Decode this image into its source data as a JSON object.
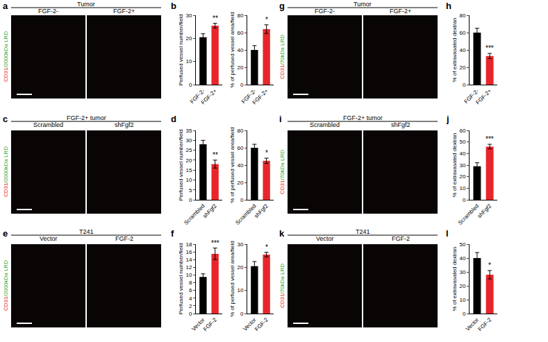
{
  "image_panels": [
    {
      "panel": "a",
      "header": "Tumor",
      "labels": [
        "FGF-2-",
        "FGF-2+"
      ],
      "stain": "CD31/2000kDa LRD"
    },
    {
      "panel": "c",
      "header": "FGF-2+ tumor",
      "labels": [
        "Scrambled",
        "shFgf2"
      ],
      "stain": "CD31/2000kDa LRD"
    },
    {
      "panel": "e",
      "header": "T241",
      "labels": [
        "Vector",
        "FGF-2"
      ],
      "stain": "CD31/2000kDa LRD"
    },
    {
      "panel": "g",
      "header": "Tumor",
      "labels": [
        "FGF-2-",
        "FGF-2+"
      ],
      "stain": "CD31/70kDa LRD"
    },
    {
      "panel": "i",
      "header": "FGF-2+ tumor",
      "labels": [
        "Scrambled",
        "shFgf2"
      ],
      "stain": "CD31/70kDa LRD"
    },
    {
      "panel": "k",
      "header": "T241",
      "labels": [
        "Vector",
        "FGF-2"
      ],
      "stain": "CD31/70kDa LRD"
    }
  ],
  "chart_data": [
    {
      "panel": "b",
      "type": "bar",
      "ylabel": "Perfused vessel number/field",
      "categories": [
        "FGF-2-",
        "FGF-2+"
      ],
      "values": [
        20.5,
        25.5
      ],
      "errors": [
        1.5,
        1
      ],
      "colors": [
        "#000000",
        "#e8262a"
      ],
      "ylim": [
        0,
        30
      ],
      "yticks": [
        0,
        10,
        20,
        30
      ],
      "annotations": [
        {
          "category": "FGF-2+",
          "text": "**"
        }
      ]
    },
    {
      "type": "bar",
      "ylabel": "% of perfused vessel area/field",
      "categories": [
        "FGF-2-",
        "FGF-2+"
      ],
      "values": [
        40,
        64
      ],
      "errors": [
        5,
        5
      ],
      "colors": [
        "#000000",
        "#e8262a"
      ],
      "ylim": [
        0,
        80
      ],
      "yticks": [
        0,
        20,
        40,
        60,
        80
      ],
      "annotations": [
        {
          "category": "FGF-2+",
          "text": "*"
        }
      ]
    },
    {
      "panel": "d",
      "type": "bar",
      "ylabel": "Perfused vessel number/field",
      "categories": [
        "Scrambled",
        "shFgf2"
      ],
      "values": [
        28,
        18
      ],
      "errors": [
        2,
        2
      ],
      "colors": [
        "#000000",
        "#e8262a"
      ],
      "ylim": [
        0,
        35
      ],
      "yticks": [
        0,
        5,
        10,
        15,
        20,
        25,
        30,
        35
      ],
      "annotations": [
        {
          "category": "shFgf2",
          "text": "**"
        }
      ]
    },
    {
      "type": "bar",
      "ylabel": "% of perfused vessel area/field",
      "categories": [
        "Scrambled",
        "shFgf2"
      ],
      "values": [
        60,
        45
      ],
      "errors": [
        4,
        3
      ],
      "colors": [
        "#000000",
        "#e8262a"
      ],
      "ylim": [
        0,
        80
      ],
      "yticks": [
        0,
        20,
        40,
        60,
        80
      ],
      "annotations": [
        {
          "category": "shFgf2",
          "text": "*"
        }
      ]
    },
    {
      "panel": "f",
      "type": "bar",
      "ylabel": "Perfused vessel number/field",
      "categories": [
        "Vector",
        "FGF-2"
      ],
      "values": [
        9.5,
        15.5
      ],
      "errors": [
        0.8,
        1.5
      ],
      "colors": [
        "#000000",
        "#e8262a"
      ],
      "ylim": [
        0,
        18
      ],
      "yticks": [
        0,
        2,
        4,
        6,
        8,
        10,
        12,
        14,
        16,
        18
      ],
      "annotations": [
        {
          "category": "FGF-2",
          "text": "***"
        }
      ]
    },
    {
      "type": "bar",
      "ylabel": "% of perfused vessel area/field",
      "categories": [
        "Vector",
        "FGF-2"
      ],
      "values": [
        20.5,
        25.5
      ],
      "errors": [
        2,
        1
      ],
      "colors": [
        "#000000",
        "#e8262a"
      ],
      "ylim": [
        0,
        30
      ],
      "yticks": [
        0,
        10,
        20,
        30
      ],
      "annotations": [
        {
          "category": "FGF-2",
          "text": "*"
        }
      ]
    },
    {
      "panel": "h",
      "type": "bar",
      "ylabel": "% of extravasated dextran",
      "categories": [
        "FGF-2-",
        "FGF-2+"
      ],
      "values": [
        60,
        33
      ],
      "errors": [
        5,
        3
      ],
      "colors": [
        "#000000",
        "#e8262a"
      ],
      "ylim": [
        0,
        80
      ],
      "yticks": [
        0,
        20,
        40,
        60,
        80
      ],
      "annotations": [
        {
          "category": "FGF-2+",
          "text": "***"
        }
      ]
    },
    {
      "panel": "j",
      "type": "bar",
      "ylabel": "% of extravasated dextran",
      "categories": [
        "Scrambled",
        "shFgf2"
      ],
      "values": [
        29,
        46
      ],
      "errors": [
        3,
        2
      ],
      "colors": [
        "#000000",
        "#e8262a"
      ],
      "ylim": [
        0,
        60
      ],
      "yticks": [
        0,
        10,
        20,
        30,
        40,
        50,
        60
      ],
      "annotations": [
        {
          "category": "shFgf2",
          "text": "***"
        }
      ]
    },
    {
      "panel": "l",
      "type": "bar",
      "ylabel": "% of extravasated dextran",
      "categories": [
        "Vector",
        "FGF-2"
      ],
      "values": [
        40,
        28
      ],
      "errors": [
        4,
        3
      ],
      "colors": [
        "#000000",
        "#e8262a"
      ],
      "ylim": [
        0,
        50
      ],
      "yticks": [
        0,
        10,
        20,
        30,
        40,
        50
      ],
      "annotations": [
        {
          "category": "FGF-2",
          "text": "*"
        }
      ]
    }
  ]
}
